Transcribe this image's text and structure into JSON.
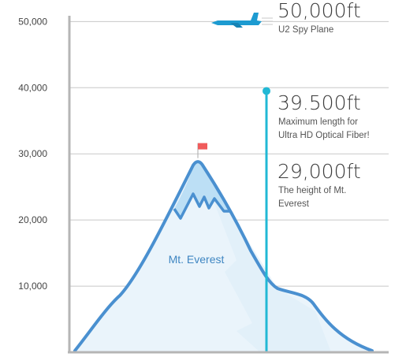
{
  "chart_data": {
    "type": "area",
    "ylim": [
      0,
      50000
    ],
    "yticks": [
      10000,
      20000,
      30000,
      40000,
      50000
    ],
    "ytick_labels": [
      "10,000",
      "20,000",
      "30,000",
      "40,000",
      "50,000"
    ],
    "grid": true,
    "mountain_label": "Mt. Everest",
    "markers": [
      {
        "key": "plane",
        "value": 50000,
        "big_label": "50,000ft",
        "lines": [
          "U2 Spy Plane"
        ]
      },
      {
        "key": "fiber",
        "value": 39500,
        "big_label": "39.500ft",
        "lines": [
          "Maximum length for",
          "Ultra HD Optical Fiber!"
        ]
      },
      {
        "key": "everest",
        "value": 29000,
        "big_label": "29,000ft",
        "lines": [
          "The height of Mt.",
          "Everest"
        ]
      }
    ],
    "colors": {
      "mountain_line": "#4a90d0",
      "mountain_fill": "#eaf4fb",
      "peak_fill": "#bcdff5",
      "fiber": "#21b8d5",
      "flag": "#f05b5b",
      "plane": "#1d9bd1",
      "grid": "#c8c8c8",
      "axis": "#b5b5b5"
    }
  }
}
